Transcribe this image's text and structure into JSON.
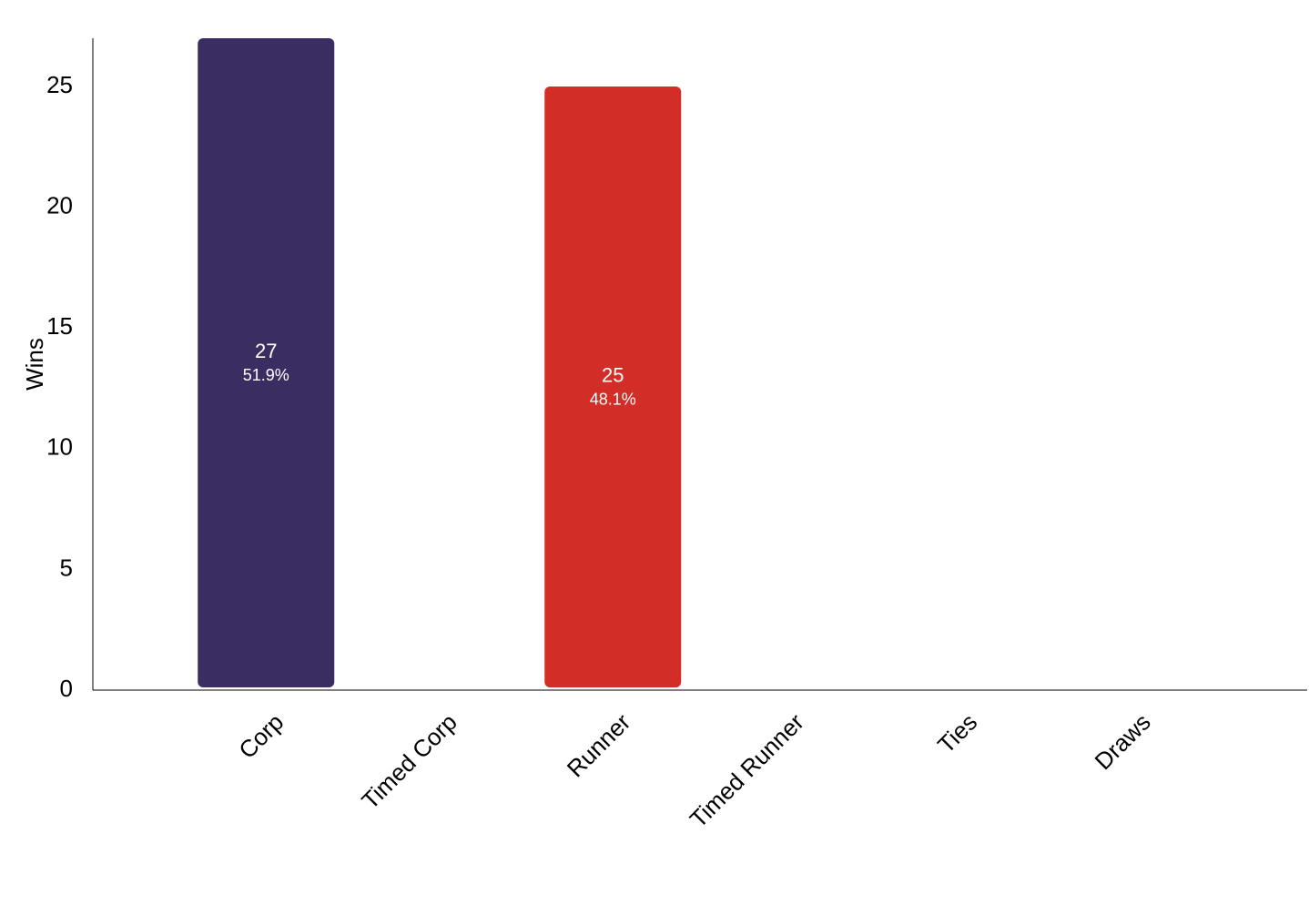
{
  "chart_data": {
    "type": "bar",
    "y_label": "Wins",
    "categories": [
      "Corp",
      "Timed Corp",
      "Runner",
      "Timed Runner",
      "Ties",
      "Draws"
    ],
    "values": [
      27,
      0,
      25,
      0,
      0,
      0
    ],
    "percent_labels": [
      "51.9%",
      null,
      "48.1%",
      null,
      null,
      null
    ],
    "colors": [
      "#392d62",
      "#392d62",
      "#d22d27",
      "#d22d27",
      "#888888",
      "#888888"
    ],
    "ylim": [
      0,
      27
    ],
    "yticks": [
      0,
      5,
      10,
      15,
      20,
      25
    ],
    "grid": false
  }
}
